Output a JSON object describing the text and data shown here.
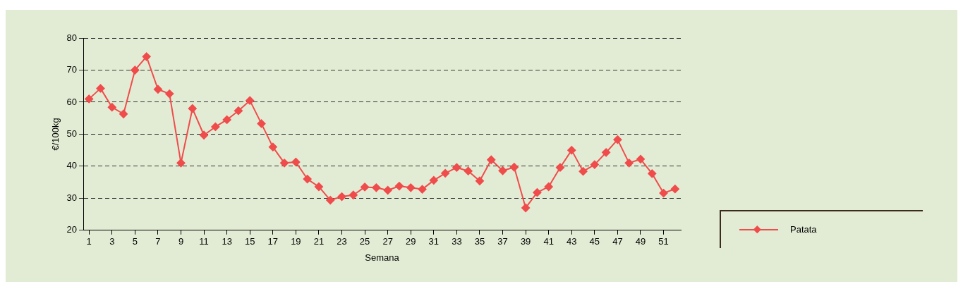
{
  "chart_data": {
    "type": "line",
    "xlabel": "Semana",
    "ylabel": "€/100kg",
    "x": [
      1,
      2,
      3,
      4,
      5,
      6,
      7,
      8,
      9,
      10,
      11,
      12,
      13,
      14,
      15,
      16,
      17,
      18,
      19,
      20,
      21,
      22,
      23,
      24,
      25,
      26,
      27,
      28,
      29,
      30,
      31,
      32,
      33,
      34,
      35,
      36,
      37,
      38,
      39,
      40,
      41,
      42,
      43,
      44,
      45,
      46,
      47,
      48,
      49,
      50,
      51,
      52
    ],
    "xlim": [
      0.5,
      52.5
    ],
    "xticks": [
      1,
      3,
      5,
      7,
      9,
      11,
      13,
      15,
      17,
      19,
      21,
      23,
      25,
      27,
      29,
      31,
      33,
      35,
      37,
      39,
      41,
      43,
      45,
      47,
      49,
      51
    ],
    "series": [
      {
        "name": "Patata",
        "color": "#f04c4c",
        "values": [
          61,
          64.3,
          58.4,
          56.3,
          70,
          74.2,
          64,
          62.6,
          41,
          58,
          49.7,
          52.3,
          54.5,
          57.3,
          60.5,
          53.3,
          46,
          41,
          41.3,
          36,
          33.6,
          29.4,
          30.5,
          31,
          33.5,
          33.3,
          32.5,
          33.8,
          33.3,
          32.8,
          35.6,
          37.8,
          39.6,
          38.5,
          35.4,
          42,
          38.6,
          39.7,
          27,
          31.8,
          33.6,
          39.6,
          45,
          38.4,
          40.5,
          44.3,
          48.3,
          41,
          42.2,
          37.7,
          31.6,
          32.9
        ]
      }
    ],
    "ylim": [
      20,
      80
    ],
    "yticks": [
      20,
      30,
      40,
      50,
      60,
      70,
      80
    ],
    "grid": "y",
    "marker": "diamond",
    "legend": "bottom right"
  }
}
